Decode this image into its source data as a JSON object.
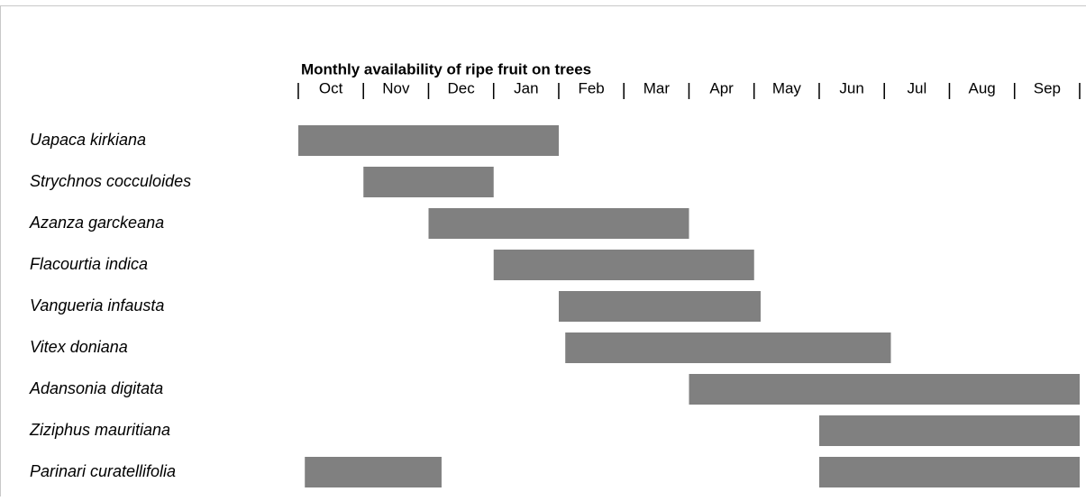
{
  "chart_data": {
    "type": "gantt",
    "title": "Monthly availability of ripe fruit on trees",
    "months": [
      "Oct",
      "Nov",
      "Dec",
      "Jan",
      "Feb",
      "Mar",
      "Apr",
      "May",
      "Jun",
      "Jul",
      "Aug",
      "Sep"
    ],
    "xlim": [
      0,
      12
    ],
    "xticks": [
      {
        "value": 0,
        "label": "|"
      },
      {
        "value": 1,
        "label": "|"
      },
      {
        "value": 2,
        "label": "|"
      },
      {
        "value": 3,
        "label": "|"
      },
      {
        "value": 4,
        "label": "|"
      },
      {
        "value": 5,
        "label": "|"
      },
      {
        "value": 6,
        "label": "|"
      },
      {
        "value": 7,
        "label": "|"
      },
      {
        "value": 8,
        "label": "|"
      },
      {
        "value": 9,
        "label": "|"
      },
      {
        "value": 10,
        "label": "|"
      },
      {
        "value": 11,
        "label": "|"
      },
      {
        "value": 12,
        "label": "|"
      }
    ],
    "categories": [
      "Uapaca kirkiana",
      "Strychnos cocculoides",
      "Azanza garckeana",
      "Flacourtia indica",
      "Vangueria infausta",
      "Vitex doniana",
      "Adansonia digitata",
      "Ziziphus mauritiana",
      "Parinari curatellifolia"
    ],
    "ranges": [
      [
        [
          0,
          4
        ]
      ],
      [
        [
          1,
          3
        ]
      ],
      [
        [
          2,
          6
        ]
      ],
      [
        [
          3,
          7
        ]
      ],
      [
        [
          4,
          7.1
        ]
      ],
      [
        [
          4.1,
          9.1
        ]
      ],
      [
        [
          6,
          12
        ]
      ],
      [
        [
          8,
          12
        ]
      ],
      [
        [
          0.1,
          2.2
        ],
        [
          8,
          12
        ]
      ]
    ],
    "color": "#808080"
  }
}
